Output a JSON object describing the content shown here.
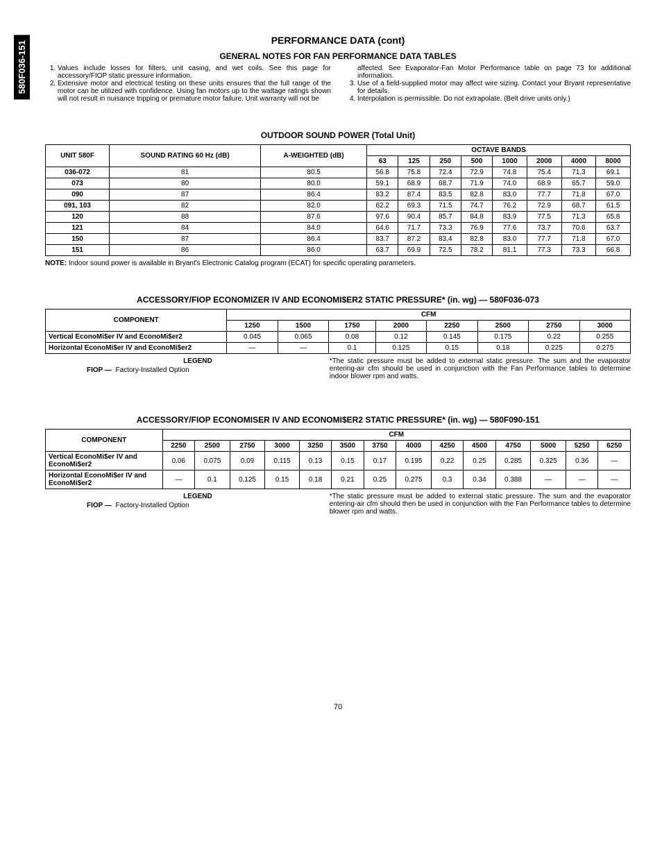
{
  "side_tab": "580F036-151",
  "title": "PERFORMANCE DATA (cont)",
  "section_heading": "GENERAL NOTES FOR FAN PERFORMANCE DATA TABLES",
  "notes_left": [
    "Values include losses for filters, unit casing, and wet coils. See this page for accessory/FIOP static pressure information.",
    "Extensive motor and electrical testing on these units ensures that the full range of the motor can be utilized with confidence. Using fan motors up to the wattage ratings shown will not result in nuisance tripping or premature motor failure. Unit warranty will not be"
  ],
  "notes_right_cont": "affected. See Evaporator-Fan Motor Performance table on page 73 for additional information.",
  "notes_right": [
    "Use of a field-supplied motor may affect wire sizing. Contact your Bryant representative for details.",
    "Interpolation is permissible. Do not extrapolate. (Belt drive units only.)"
  ],
  "sound": {
    "title": "OUTDOOR SOUND POWER (Total Unit)",
    "headers": {
      "unit": "UNIT 580F",
      "sound_rating": "SOUND RATING 60 Hz (dB)",
      "a_weighted": "A-WEIGHTED (dB)",
      "octave_bands": "OCTAVE BANDS",
      "bands": [
        "63",
        "125",
        "250",
        "500",
        "1000",
        "2000",
        "4000",
        "8000"
      ]
    },
    "rows": [
      {
        "unit": "036-072",
        "sr": "81",
        "aw": "80.5",
        "b": [
          "56.8",
          "75.8",
          "72.4",
          "72.9",
          "74.8",
          "75.4",
          "71.3",
          "69.1"
        ]
      },
      {
        "unit": "073",
        "sr": "80",
        "aw": "80.0",
        "b": [
          "59.1",
          "68.9",
          "68.7",
          "71.9",
          "74.0",
          "68.9",
          "65.7",
          "59.0"
        ]
      },
      {
        "unit": "090",
        "sr": "87",
        "aw": "86.4",
        "b": [
          "83.2",
          "87.4",
          "83.5",
          "82.8",
          "83.0",
          "77.7",
          "71.8",
          "67.0"
        ]
      },
      {
        "unit": "091, 103",
        "sr": "82",
        "aw": "82.0",
        "b": [
          "62.2",
          "69.3",
          "71.5",
          "74.7",
          "76.2",
          "72.9",
          "68.7",
          "61.5"
        ]
      },
      {
        "unit": "120",
        "sr": "88",
        "aw": "87.6",
        "b": [
          "97.6",
          "90.4",
          "85.7",
          "84.8",
          "83.9",
          "77.5",
          "71.3",
          "65.8"
        ]
      },
      {
        "unit": "121",
        "sr": "84",
        "aw": "84.0",
        "b": [
          "64.6",
          "71.7",
          "73.3",
          "76.9",
          "77.6",
          "73.7",
          "70.6",
          "63.7"
        ]
      },
      {
        "unit": "150",
        "sr": "87",
        "aw": "86.4",
        "b": [
          "83.7",
          "87.2",
          "83.4",
          "82.8",
          "83.0",
          "77.7",
          "71.8",
          "67.0"
        ]
      },
      {
        "unit": "151",
        "sr": "86",
        "aw": "86.0",
        "b": [
          "63.7",
          "69.9",
          "72.5",
          "78.2",
          "81.1",
          "77.3",
          "73.3",
          "66.8"
        ]
      }
    ],
    "note_label": "NOTE:",
    "note_text": "Indoor sound power is available in Bryant's Electronic Catalog program (ECAT) for specific operating parameters."
  },
  "econ1": {
    "title": "ACCESSORY/FIOP ECONOMIZER IV AND ECONOMI$ER2 STATIC PRESSURE* (in. wg) — 580F036-073",
    "component": "COMPONENT",
    "cfm": "CFM",
    "cols": [
      "1250",
      "1500",
      "1750",
      "2000",
      "2250",
      "2500",
      "2750",
      "3000"
    ],
    "rows": [
      {
        "name": "Vertical EconoMi$er IV and EconoMi$er2",
        "v": [
          "0.045",
          "0.065",
          "0.08",
          "0.12",
          "0.145",
          "0.175",
          "0.22",
          "0.255"
        ]
      },
      {
        "name": "Horizontal EconoMi$er IV and EconoMi$er2",
        "v": [
          "—",
          "—",
          "0.1",
          "0.125",
          "0.15",
          "0.18",
          "0.225",
          "0.275"
        ]
      }
    ],
    "legend_title": "LEGEND",
    "legend_fiop_label": "FIOP —",
    "legend_fiop_text": "Factory-Installed Option",
    "footnote": "*The static pressure must be added to external static pressure. The sum and the evaporator entering-air cfm should be used in conjunction with the Fan Performance tables to determine indoor blower rpm and watts."
  },
  "econ2": {
    "title": "ACCESSORY/FIOP ECONOMISER IV AND ECONOMI$ER2 STATIC PRESSURE* (in. wg) — 580F090-151",
    "component": "COMPONENT",
    "cfm": "CFM",
    "cols": [
      "2250",
      "2500",
      "2750",
      "3000",
      "3250",
      "3500",
      "3750",
      "4000",
      "4250",
      "4500",
      "4750",
      "5000",
      "5250",
      "6250"
    ],
    "rows": [
      {
        "name": "Vertical EconoMi$er IV and EconoMi$er2",
        "v": [
          "0.06",
          "0.075",
          "0.09",
          "0.115",
          "0.13",
          "0.15",
          "0.17",
          "0.195",
          "0.22",
          "0.25",
          "0.285",
          "0.325",
          "0.36",
          "—"
        ]
      },
      {
        "name": "Horizontal EconoMi$er IV and EconoMi$er2",
        "v": [
          "—",
          "0.1",
          "0.125",
          "0.15",
          "0.18",
          "0.21",
          "0.25",
          "0.275",
          "0.3",
          "0.34",
          "0.388",
          "—",
          "—",
          "—"
        ]
      }
    ],
    "legend_title": "LEGEND",
    "legend_fiop_label": "FIOP —",
    "legend_fiop_text": "Factory-Installed Option",
    "footnote": "*The static pressure must be added to external static pressure. The sum and the evaporator entering-air cfm should then be used in conjunction with the Fan Performance tables to determine blower rpm and watts."
  },
  "page_number": "70"
}
